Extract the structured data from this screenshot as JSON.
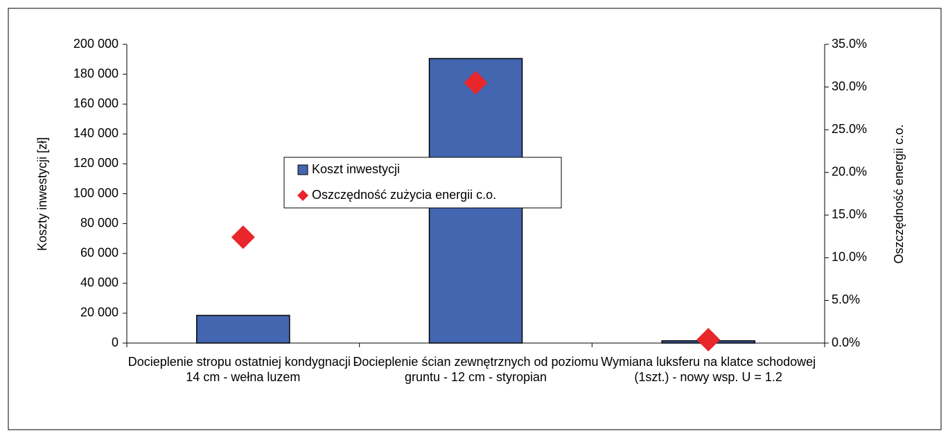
{
  "chart_data": {
    "type": "bar",
    "y_label": "Koszty inwestycji [zł]",
    "y2_label": "Oszczędność energii c.o.",
    "categories": [
      "Docieplenie stropu ostatniej kondygnacji - 14 cm - wełna luzem",
      "Docieplenie ścian zewnętrznych od poziomu gruntu - 12 cm - styropian",
      "Wymiana luksferu na klatce schodowej (1szt.) - nowy wsp. U = 1.2"
    ],
    "series": [
      {
        "name": "Koszt inwestycji",
        "type": "bar",
        "color": "#4466b0",
        "values": [
          18500,
          190500,
          1500
        ]
      },
      {
        "name": "Oszczędność zużycia energii c.o.",
        "type": "scatter",
        "axis": "y2",
        "color": "#e8262b",
        "values": [
          12.4,
          30.5,
          0.4
        ]
      }
    ],
    "ylim": [
      0,
      200000
    ],
    "yticks": [
      {
        "value": 0,
        "label": "0"
      },
      {
        "value": 20000,
        "label": "20 000"
      },
      {
        "value": 40000,
        "label": "40 000"
      },
      {
        "value": 60000,
        "label": "60 000"
      },
      {
        "value": 80000,
        "label": "80 000"
      },
      {
        "value": 100000,
        "label": "100 000"
      },
      {
        "value": 120000,
        "label": "120 000"
      },
      {
        "value": 140000,
        "label": "140 000"
      },
      {
        "value": 160000,
        "label": "160 000"
      },
      {
        "value": 180000,
        "label": "180 000"
      },
      {
        "value": 200000,
        "label": "200 000"
      }
    ],
    "y2lim": [
      0,
      35
    ],
    "y2ticks": [
      {
        "value": 0,
        "label": "0.0%"
      },
      {
        "value": 5,
        "label": "5.0%"
      },
      {
        "value": 10,
        "label": "10.0%"
      },
      {
        "value": 15,
        "label": "15.0%"
      },
      {
        "value": 20,
        "label": "20.0%"
      },
      {
        "value": 25,
        "label": "25.0%"
      },
      {
        "value": 30,
        "label": "30.0%"
      },
      {
        "value": 35,
        "label": "35.0%"
      }
    ],
    "grid": false
  }
}
